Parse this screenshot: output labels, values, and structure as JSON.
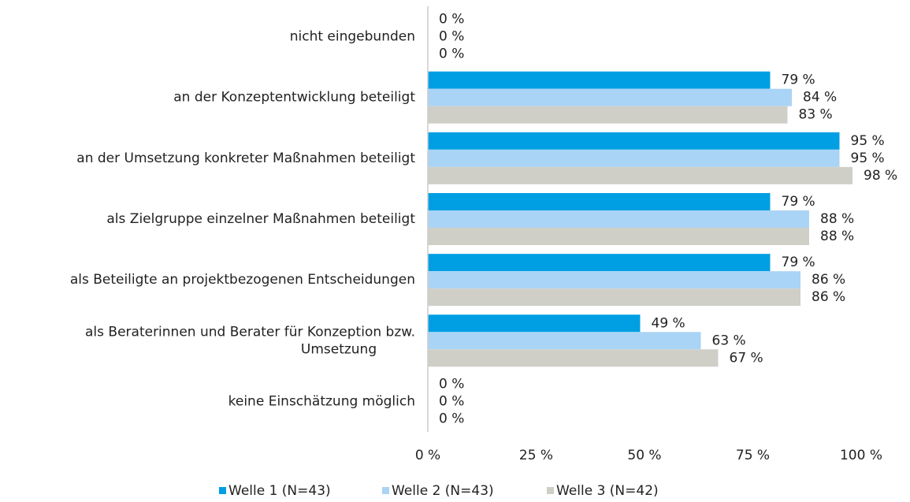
{
  "chart_data": {
    "type": "bar",
    "orientation": "horizontal",
    "categories": [
      "nicht eingebunden",
      "an der Konzeptentwicklung beteiligt",
      "an der Umsetzung konkreter Maßnahmen beteiligt",
      "als Zielgruppe einzelner Maßnahmen beteiligt",
      "als Beteiligte an projektbezogenen Entscheidungen",
      "als Beraterinnen und Berater für Konzeption bzw. Umsetzung",
      "keine Einschätzung möglich"
    ],
    "series": [
      {
        "name": "Welle 1 (N=43)",
        "color": "#009fe3",
        "values": [
          0,
          79,
          95,
          79,
          79,
          49,
          0
        ],
        "value_labels": [
          "0 %",
          "79 %",
          "95 %",
          "79 %",
          "79 %",
          "49 %",
          "0 %"
        ]
      },
      {
        "name": "Welle 2 (N=43)",
        "color": "#a9d4f5",
        "values": [
          0,
          84,
          95,
          88,
          86,
          63,
          0
        ],
        "value_labels": [
          "0 %",
          "84 %",
          "95 %",
          "88 %",
          "86 %",
          "63 %",
          "0 %"
        ]
      },
      {
        "name": "Welle 3 (N=42)",
        "color": "#d0cfc7",
        "values": [
          0,
          83,
          98,
          88,
          86,
          67,
          0
        ],
        "value_labels": [
          "0 %",
          "83 %",
          "98 %",
          "88 %",
          "86 %",
          "67 %",
          "0 %"
        ]
      }
    ],
    "xlim": [
      0,
      100
    ],
    "xticks": [
      {
        "value": 0,
        "label": "0 %"
      },
      {
        "value": 25,
        "label": "25 %"
      },
      {
        "value": 50,
        "label": "50 %"
      },
      {
        "value": 75,
        "label": "75 %"
      },
      {
        "value": 100,
        "label": "100 %"
      }
    ],
    "legend": "bottom"
  }
}
